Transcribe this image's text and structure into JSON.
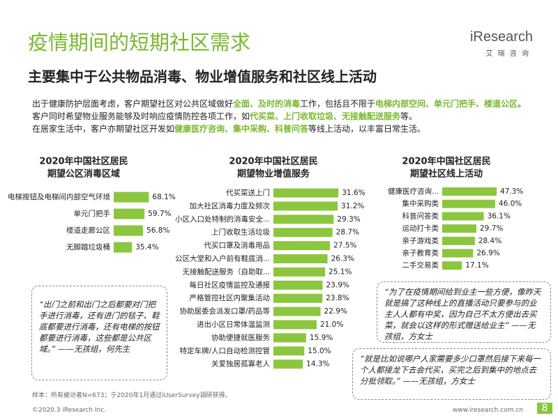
{
  "header": {
    "title": "疫情期间的短期社区需求",
    "subtitle": "主要集中于公共物品消毒、物业增值服务和社区线上活动",
    "logo": "iResearch",
    "logo_sub": "艾 瑞 咨 询"
  },
  "paragraphs": [
    [
      "出于健康防护层面考虑，客户期望社区对公共区域做好",
      {
        "text": "全面、及时的消毒",
        "emphasis": true
      },
      "工作，包括且不限于",
      {
        "text": "电梯内部空间、单元门把手、楼道公区",
        "emphasis": true
      },
      "。"
    ],
    [
      "客户同时希望物业服务能够及时响应疫情防控各项工作，如",
      {
        "text": "代买菜、上门收取垃圾、无接触配送服务",
        "emphasis": true
      },
      "等。"
    ],
    [
      "在居家生活中，客户亦期望社区开发如",
      {
        "text": "健康医疗咨询、集中采购、科普问答",
        "emphasis": true
      },
      "等线上活动，以丰富日常生活。"
    ]
  ],
  "chart_data": [
    {
      "type": "bar",
      "orientation": "horizontal",
      "color": "#8cc63f",
      "title": [
        "2020年中国社区居民",
        "期望公区消毒区域"
      ],
      "categories": [
        "电梯按钮及电梯间内部空气环境",
        "单元门把手",
        "楼道走廊公区",
        "无脚踏垃圾桶"
      ],
      "values": [
        68.1,
        59.7,
        56.8,
        35.4
      ],
      "value_labels": [
        "68.1%",
        "59.7%",
        "56.8%",
        "35.4%"
      ]
    },
    {
      "type": "bar",
      "orientation": "horizontal",
      "color": "#8cc63f",
      "title": [
        "2020年中国社区居民",
        "期望物业增值服务"
      ],
      "categories": [
        "代买菜送上门",
        "加大社区消毒力度及频次",
        "小区入口处特制的消毒安全...",
        "上门收取生活垃圾",
        "代买口罩及消毒用品",
        "公区大堂和入户前有鞋底消...",
        "无接触配送服务（自助取...",
        "每日社区疫情监控及通报",
        "严格管控社区内聚集活动",
        "协助居委会派发口罩/药品等",
        "进出小区日常体温监测",
        "协助便捷就医服务",
        "特定车牌/人口自动检测控管",
        "关爱独居孤寡老人"
      ],
      "values": [
        31.6,
        31.2,
        29.3,
        28.7,
        27.5,
        26.3,
        25.1,
        23.9,
        23.8,
        22.9,
        21.0,
        15.9,
        15.0,
        14.3
      ],
      "value_labels": [
        "31.6%",
        "31.2%",
        "29.3%",
        "28.7%",
        "27.5%",
        "26.3%",
        "25.1%",
        "23.9%",
        "23.8%",
        "22.9%",
        "21.0%",
        "15.9%",
        "15.0%",
        "14.3%"
      ]
    },
    {
      "type": "bar",
      "orientation": "horizontal",
      "color": "#8cc63f",
      "title": [
        "2020年中国社区居民",
        "期望社区线上活动"
      ],
      "categories": [
        "健康医疗咨询...",
        "集中采购类",
        "科普问答类",
        "运动打卡类",
        "亲子游戏类",
        "亲子教育类",
        "二手交易类"
      ],
      "values": [
        47.3,
        46.0,
        36.1,
        29.7,
        28.4,
        26.9,
        17.1
      ],
      "value_labels": [
        "47.3%",
        "46.0%",
        "36.1%",
        "29.7%",
        "28.4%",
        "26.9%",
        "17.1%"
      ]
    }
  ],
  "quotes": [
    "“出门之前和出门之后都要对门把手进行消毒，还有进门的毯子、鞋底都要进行消毒，还有电梯的按钮都要进行消毒，这些都是公共区域。” ——无孩组，何先生",
    "“为了在疫情期间给到业主一些方便，像昨天就是搞了这种线上的直播活动只要参与的业主人人都有中奖，因为自己不太方便出去买菜，就会以这样的形式赠送给业主” ——无孩组，方女士",
    "“就是比如说哪户人家需要多少口罩然后接下来每一个人都接龙下去会代买，买完之后到集中的地点去分批领取。” ——无孩组，方女士"
  ],
  "footnote": "样本：所有被访者N=673；于2020年1月通过iUserSurvey调研获得。",
  "footer": {
    "copyright": "©2020.3 iResearch Inc.",
    "url": "www.iresearch.com.cn",
    "page": "8"
  }
}
